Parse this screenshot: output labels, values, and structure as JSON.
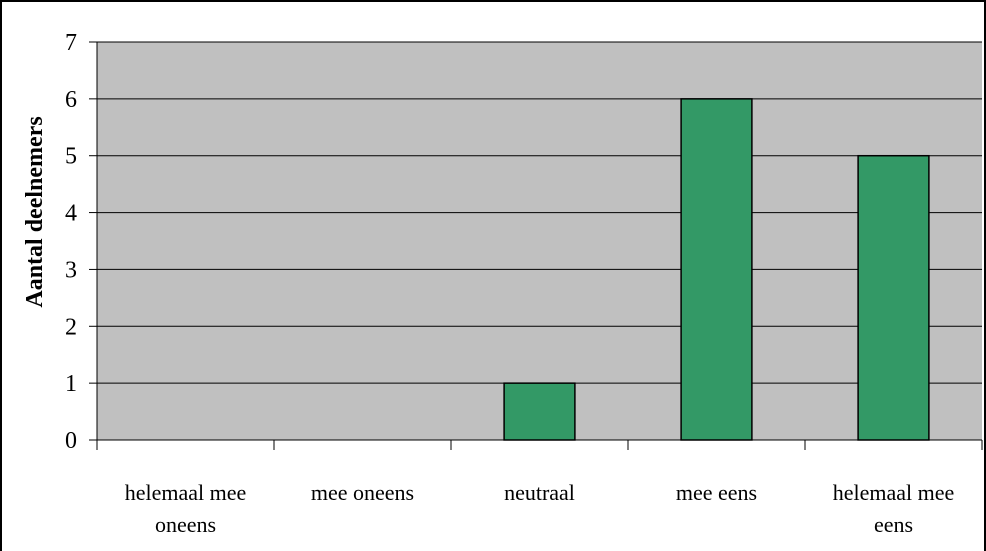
{
  "chart_data": {
    "type": "bar",
    "title": "",
    "xlabel": "",
    "ylabel": "Aantal deelnemers",
    "categories": [
      [
        "helemaal mee",
        "oneens"
      ],
      [
        "mee oneens"
      ],
      [
        "neutraal"
      ],
      [
        "mee eens"
      ],
      [
        "helemaal mee",
        "eens"
      ]
    ],
    "values": [
      0,
      0,
      1,
      6,
      5
    ],
    "ylim": [
      0,
      7
    ],
    "yticks": [
      0,
      1,
      2,
      3,
      4,
      5,
      6,
      7
    ],
    "grid": true,
    "legend": "none"
  },
  "colors": {
    "plot_background": "#c0c0c0",
    "bar_fill": "#339966",
    "bar_stroke": "#000000",
    "gridline": "#000000",
    "frame_border": "#000000"
  }
}
